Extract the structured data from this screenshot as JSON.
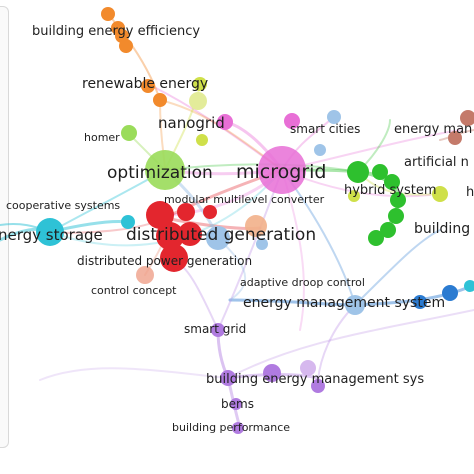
{
  "network": {
    "labels": {
      "building_energy_efficiency": "building energy efficiency",
      "renewable_energy": "renewable energy",
      "nanogrid": "nanogrid",
      "homer": "homer",
      "smart_cities": "smart cities",
      "energy_management_cut": "energy man",
      "artificial_cut": "artificial n",
      "optimization": "optimization",
      "microgrid": "microgrid",
      "hybrid_system": "hybrid system",
      "h_cut": "h",
      "cooperative_systems": "cooperative systems",
      "modular_multilevel_converter": "modular multilevel converter",
      "building_cut": "building",
      "energy_storage_cut": "nergy storage",
      "distributed_generation": "distributed generation",
      "distributed_power_generation": "distributed power generation",
      "adaptive_droop_control": "adaptive droop control",
      "control_concept": "control concept",
      "energy_management_system": "energy management system",
      "smart_grid": "smart grid",
      "building_energy_management_sys": "building energy management sys",
      "bems": "bems",
      "building_performance": "building performance"
    },
    "colors": {
      "orange": "#f28a2c",
      "green": "#2ec02e",
      "lightgreen": "#9adc5a",
      "pink": "#e86fd6",
      "red": "#e3262e",
      "cyan": "#2ec2d6",
      "blue": "#2b7bd1",
      "purple": "#b07be0",
      "yellowgreen": "#cfe04a",
      "lightblue": "#9fc4e8",
      "brown": "#c47a6a",
      "salmon": "#efa08a"
    }
  }
}
